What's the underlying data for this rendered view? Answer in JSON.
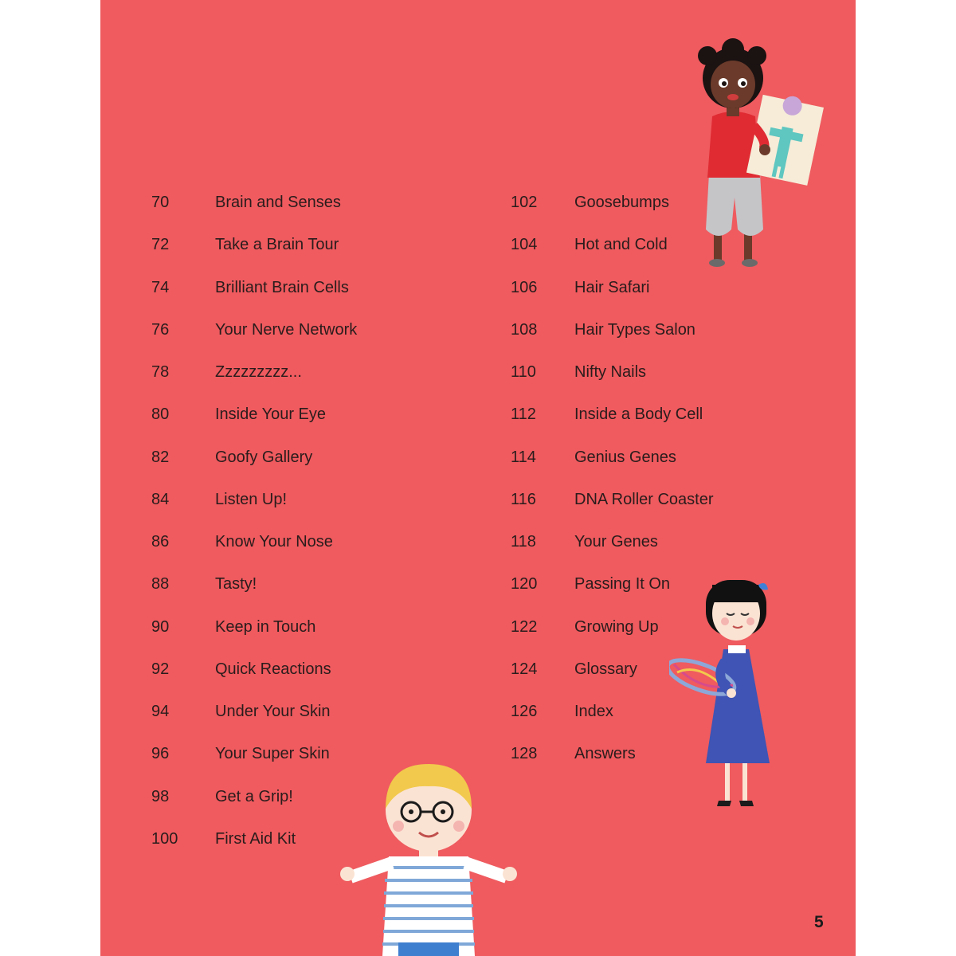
{
  "toc": {
    "left": [
      {
        "num": "70",
        "title": "Brain and Senses"
      },
      {
        "num": "72",
        "title": "Take a Brain Tour"
      },
      {
        "num": "74",
        "title": "Brilliant Brain Cells"
      },
      {
        "num": "76",
        "title": "Your Nerve Network"
      },
      {
        "num": "78",
        "title": "Zzzzzzzzz..."
      },
      {
        "num": "80",
        "title": "Inside Your Eye"
      },
      {
        "num": "82",
        "title": "Goofy Gallery"
      },
      {
        "num": "84",
        "title": "Listen Up!"
      },
      {
        "num": "86",
        "title": "Know Your Nose"
      },
      {
        "num": "88",
        "title": "Tasty!"
      },
      {
        "num": "90",
        "title": "Keep in Touch"
      },
      {
        "num": "92",
        "title": "Quick Reactions"
      },
      {
        "num": "94",
        "title": "Under Your Skin"
      },
      {
        "num": "96",
        "title": "Your Super Skin"
      },
      {
        "num": "98",
        "title": "Get a Grip!"
      },
      {
        "num": "100",
        "title": "First Aid Kit"
      }
    ],
    "right": [
      {
        "num": "102",
        "title": "Goosebumps"
      },
      {
        "num": "104",
        "title": "Hot and Cold"
      },
      {
        "num": "106",
        "title": "Hair Safari"
      },
      {
        "num": "108",
        "title": "Hair Types Salon"
      },
      {
        "num": "110",
        "title": "Nifty Nails"
      },
      {
        "num": "112",
        "title": "Inside a Body Cell"
      },
      {
        "num": "114",
        "title": "Genius Genes"
      },
      {
        "num": "116",
        "title": "DNA Roller Coaster"
      },
      {
        "num": "118",
        "title": "Your Genes"
      },
      {
        "num": "120",
        "title": "Passing It On"
      },
      {
        "num": "122",
        "title": "Growing Up"
      },
      {
        "num": "124",
        "title": "Glossary"
      },
      {
        "num": "126",
        "title": "Index"
      },
      {
        "num": "128",
        "title": "Answers"
      }
    ]
  },
  "page_number": "5",
  "colors": {
    "background": "#ef5b5f",
    "text": "#2a1c1c",
    "margin": "#ffffff"
  },
  "illustrations": [
    "girl-holding-body-chart",
    "girl-holding-dna-model",
    "boy-with-glasses"
  ]
}
